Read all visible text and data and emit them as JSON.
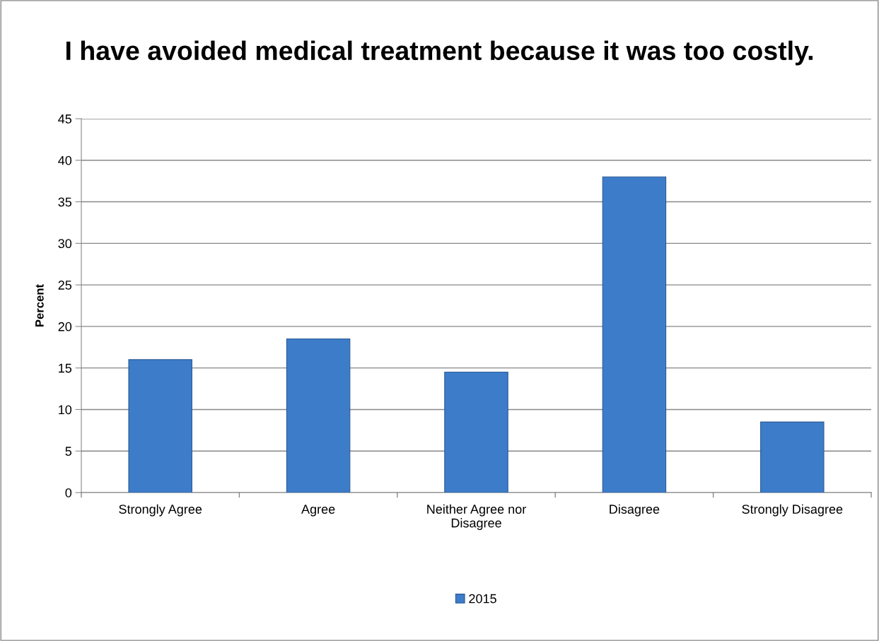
{
  "chart_data": {
    "type": "bar",
    "title": "I have avoided medical treatment because it was too costly.",
    "ylabel": "Percent",
    "categories": [
      "Strongly Agree",
      "Agree",
      "Neither Agree nor Disagree",
      "Disagree",
      "Strongly Disagree"
    ],
    "series": [
      {
        "name": "2015",
        "color": "#3d7cc9",
        "values": [
          16,
          18.5,
          14.5,
          38,
          8.5
        ]
      }
    ],
    "ylim": [
      0,
      45
    ],
    "yticks": [
      0,
      5,
      10,
      15,
      20,
      25,
      30,
      35,
      40,
      45
    ],
    "grid": "y",
    "legend": "bottom"
  }
}
